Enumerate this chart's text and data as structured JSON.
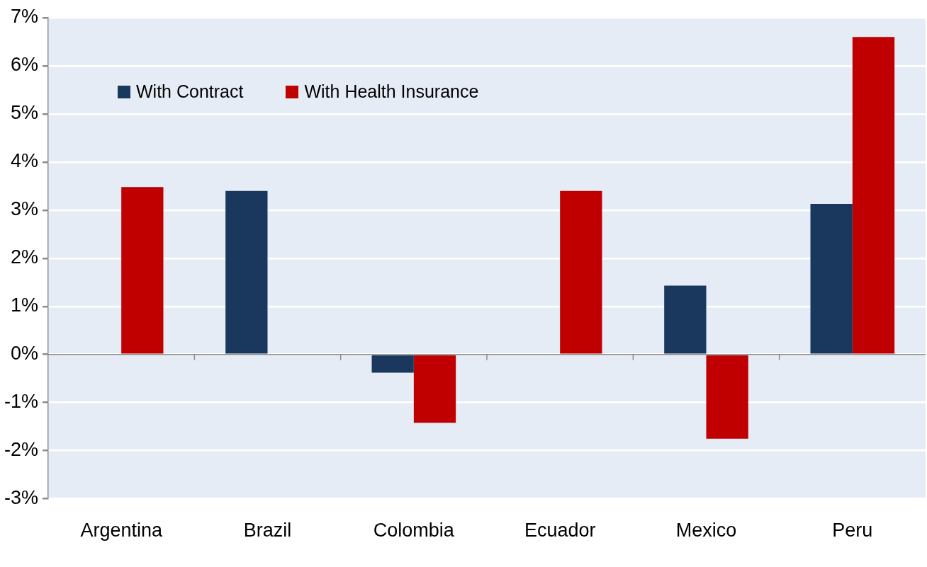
{
  "chart_data": {
    "type": "bar",
    "categories": [
      "Argentina",
      "Brazil",
      "Colombia",
      "Ecuador",
      "Mexico",
      "Peru"
    ],
    "series": [
      {
        "name": "With Contract",
        "color": "#1a385e",
        "values": [
          null,
          3.4,
          -0.38,
          null,
          1.43,
          3.13
        ]
      },
      {
        "name": "With Health Insurance",
        "color": "#c00000",
        "values": [
          3.48,
          null,
          -1.42,
          3.4,
          -1.75,
          6.6
        ]
      }
    ],
    "ylim": [
      -3,
      7
    ],
    "yticks": [
      {
        "value": -3,
        "label": "-3%"
      },
      {
        "value": -2,
        "label": "-2%"
      },
      {
        "value": -1,
        "label": "-1%"
      },
      {
        "value": 0,
        "label": "0%"
      },
      {
        "value": 1,
        "label": "1%"
      },
      {
        "value": 2,
        "label": "2%"
      },
      {
        "value": 3,
        "label": "3%"
      },
      {
        "value": 4,
        "label": "4%"
      },
      {
        "value": 5,
        "label": "5%"
      },
      {
        "value": 6,
        "label": "6%"
      },
      {
        "value": 7,
        "label": "7%"
      }
    ],
    "grid": "y",
    "legend": "top left"
  }
}
